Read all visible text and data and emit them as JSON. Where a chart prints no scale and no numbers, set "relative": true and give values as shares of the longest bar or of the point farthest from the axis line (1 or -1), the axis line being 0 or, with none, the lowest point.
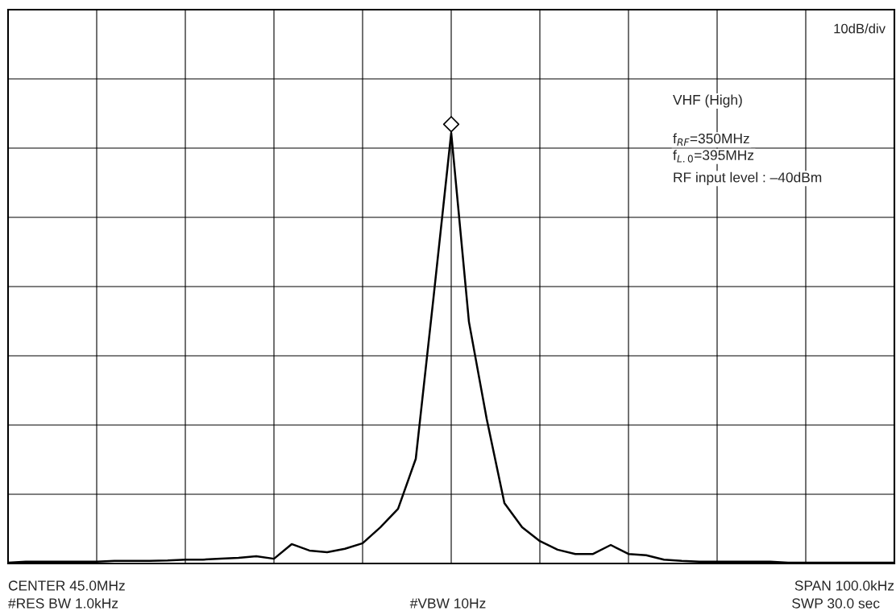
{
  "chart_data": {
    "type": "line",
    "relative": true,
    "grid": true,
    "categories": [
      null,
      null,
      null,
      null,
      null,
      null,
      null,
      null,
      null,
      null,
      null,
      null,
      null,
      null,
      null,
      null,
      null,
      null,
      null,
      null,
      null,
      null,
      null,
      null,
      null,
      null,
      null,
      null,
      null,
      null,
      null,
      null,
      null,
      null,
      null,
      null,
      null,
      null,
      null,
      null,
      null,
      null,
      null,
      null,
      null,
      null,
      null,
      null,
      null,
      null,
      null
    ],
    "series": [
      {
        "color": "#000000",
        "values": [
          0.002,
          0.004,
          0.004,
          0.004,
          0.004,
          0.004,
          0.006,
          0.006,
          0.006,
          0.007,
          0.009,
          0.009,
          0.011,
          0.013,
          0.017,
          0.011,
          0.045,
          0.03,
          0.026,
          0.034,
          0.047,
          0.084,
          0.127,
          0.243,
          0.617,
          1,
          0.561,
          0.336,
          0.14,
          0.084,
          0.052,
          0.032,
          0.022,
          0.022,
          0.043,
          0.022,
          0.019,
          0.009,
          0.006,
          0.004,
          0.004,
          0.004,
          0.004,
          0.004,
          0.002,
          0.002,
          0.002,
          0.002,
          0.002,
          0.002,
          0.002
        ]
      }
    ],
    "annotations": [
      "10dB/div",
      "VHF (High)",
      "f$_{RF}$=350MHz",
      "f$_{L.0}$=395MHz",
      "RF input level : –40dBm",
      "CENTER 45.0MHz",
      "#RES BW 1.0kHz",
      "#VBW 10Hz",
      "SPAN 100.0kHz",
      "SWP 30.0 sec"
    ]
  }
}
